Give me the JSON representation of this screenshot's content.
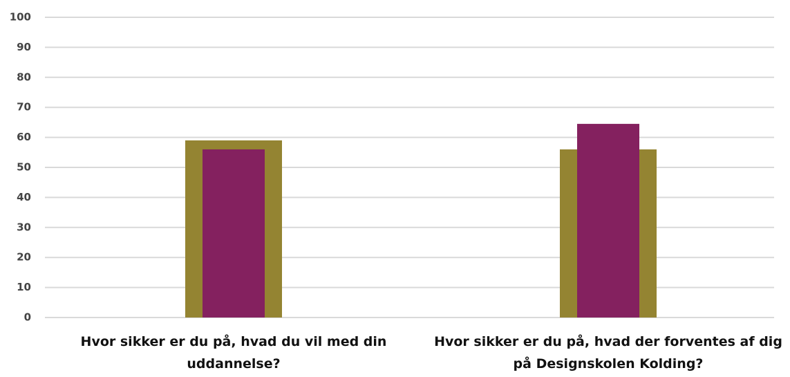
{
  "chart_data": {
    "type": "bar",
    "categories": [
      "Hvor sikker er du på, hvad du vil med din uddannelse?",
      "Hvor sikker er du på, hvad der forventes af dig på Designskolen Kolding?"
    ],
    "series": [
      {
        "color": "#948432",
        "values": [
          59,
          56
        ]
      },
      {
        "color": "#84215f",
        "values": [
          56,
          64.5
        ]
      }
    ],
    "ylim": [
      0,
      100
    ],
    "yticks": [
      0,
      10,
      20,
      30,
      40,
      50,
      60,
      70,
      80,
      90,
      100
    ],
    "grid": true
  }
}
